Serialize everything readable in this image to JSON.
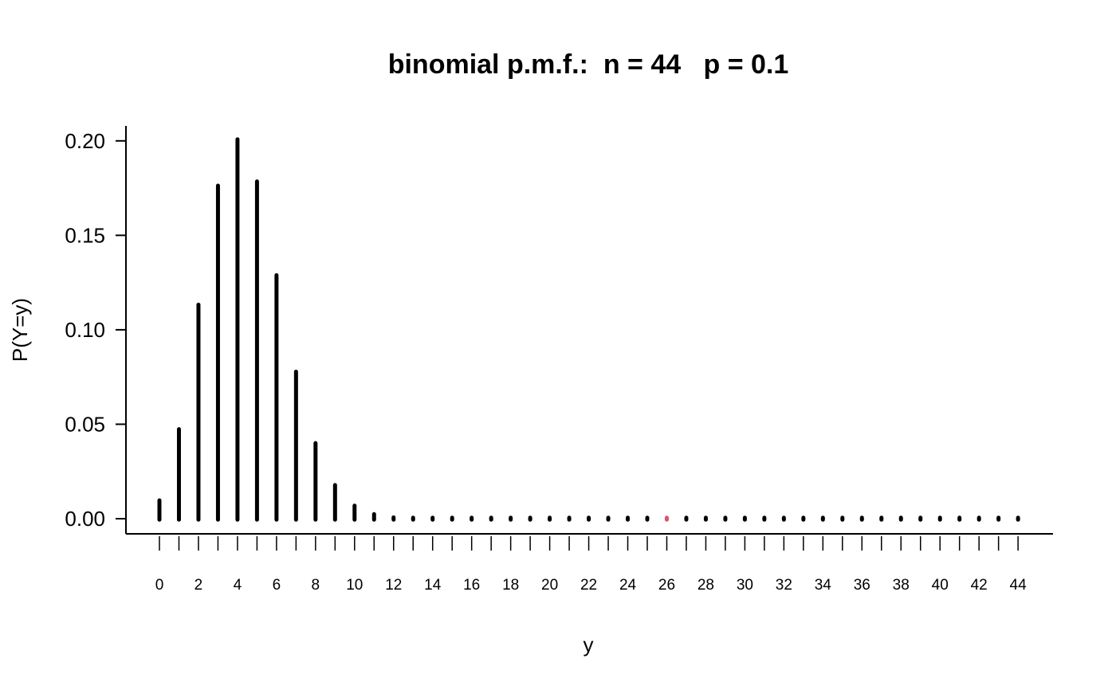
{
  "chart_data": {
    "type": "bar",
    "title": "binomial p.m.f.:  n = 44   p = 0.1",
    "xlabel": "y",
    "ylabel": "P(Y=y)",
    "n": 44,
    "p": 0.1,
    "x": [
      0,
      1,
      2,
      3,
      4,
      5,
      6,
      7,
      8,
      9,
      10,
      11,
      12,
      13,
      14,
      15,
      16,
      17,
      18,
      19,
      20,
      21,
      22,
      23,
      24,
      25,
      26,
      27,
      28,
      29,
      30,
      31,
      32,
      33,
      34,
      35,
      36,
      37,
      38,
      39,
      40,
      41,
      42,
      43,
      44
    ],
    "values": [
      0.0097,
      0.0474,
      0.1133,
      0.1763,
      0.2008,
      0.1785,
      0.1289,
      0.0778,
      0.04,
      0.0178,
      0.0069,
      0.0024,
      0.0007,
      0.0002,
      0,
      0,
      0,
      0,
      0,
      0,
      0,
      0,
      0,
      0,
      0,
      0,
      0,
      0,
      0,
      0,
      0,
      0,
      0,
      0,
      0,
      0,
      0,
      0,
      0,
      0,
      0,
      0,
      0,
      0,
      0
    ],
    "highlight_x": 26,
    "highlight_color": "#DF536B",
    "bar_color": "#000000",
    "xticks": [
      "0",
      "2",
      "4",
      "6",
      "8",
      "10",
      "12",
      "14",
      "16",
      "18",
      "20",
      "22",
      "24",
      "26",
      "28",
      "30",
      "32",
      "34",
      "36",
      "38",
      "40",
      "42",
      "44"
    ],
    "yticks": [
      "0.00",
      "0.05",
      "0.10",
      "0.15",
      "0.20"
    ],
    "ylim": [
      0,
      0.21
    ],
    "grid": false,
    "legend": "none"
  }
}
